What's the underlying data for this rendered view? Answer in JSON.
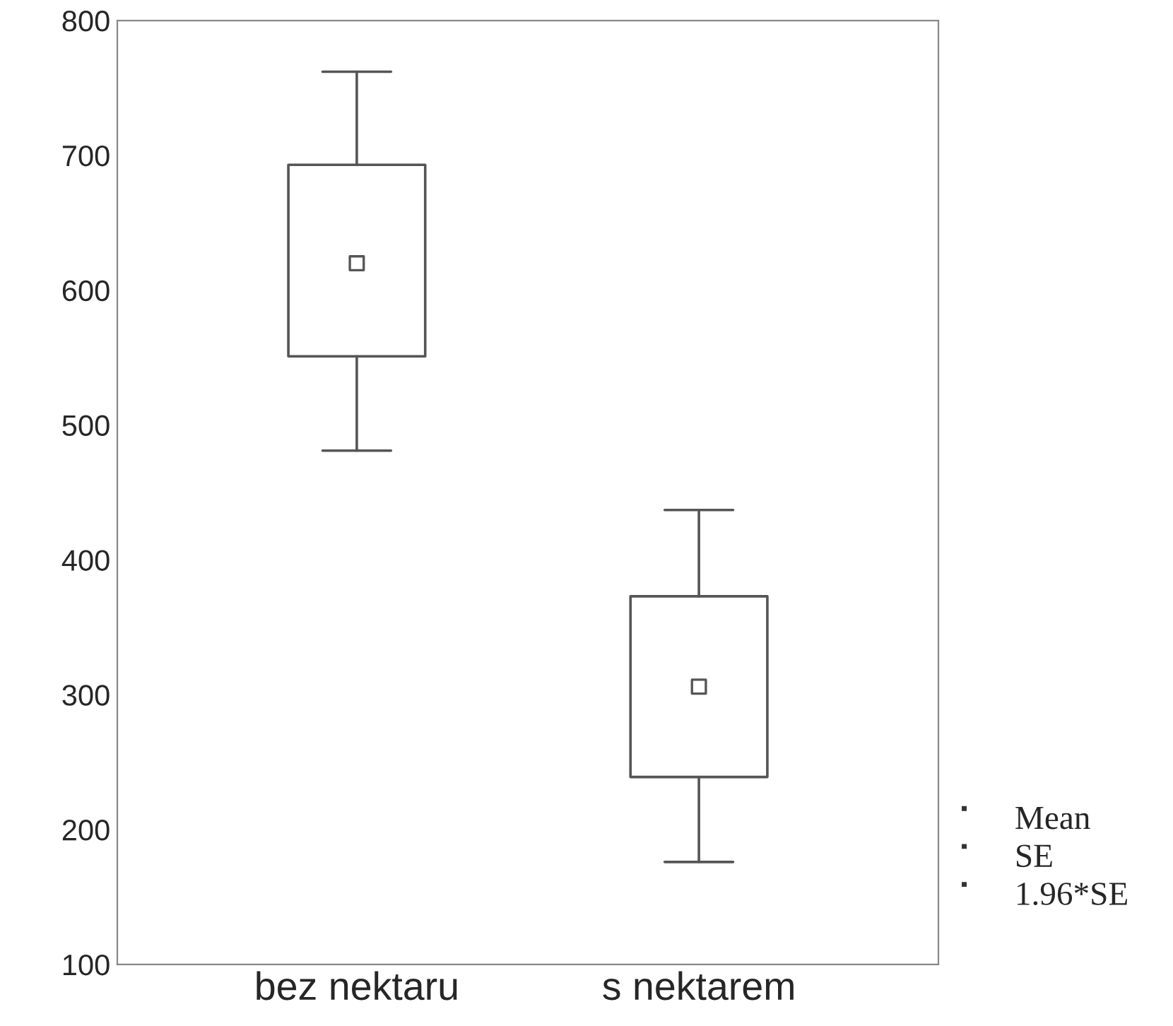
{
  "chart_data": {
    "type": "box",
    "categories": [
      "bez nektaru",
      "s nektarem"
    ],
    "boxes": [
      {
        "low": 481,
        "q1": 551,
        "q3": 693,
        "high": 762,
        "mean": 620
      },
      {
        "low": 176,
        "q1": 239,
        "q3": 373,
        "high": 437,
        "mean": 306
      }
    ],
    "color": "#555555",
    "ylim": [
      100,
      800
    ],
    "yticks": [
      100,
      200,
      300,
      400,
      500,
      600,
      700,
      800
    ],
    "annotations": [
      "Mean",
      "SE",
      "1.96*SE"
    ],
    "grid": false
  }
}
